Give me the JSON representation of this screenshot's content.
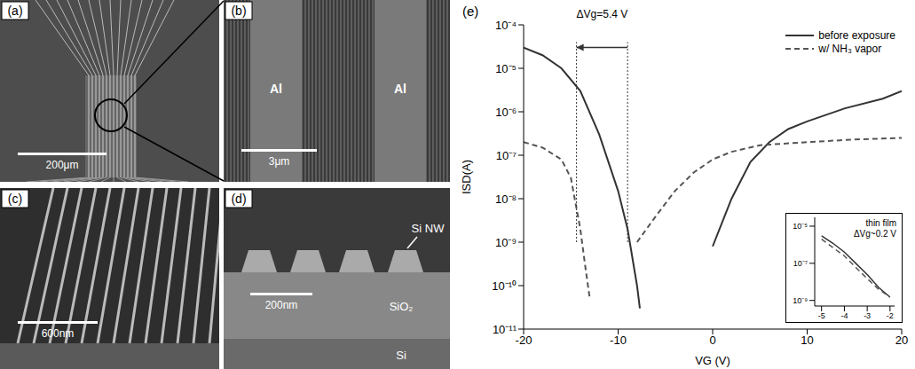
{
  "panels": [
    {
      "label": "(a)",
      "scale_bar": "200μm"
    },
    {
      "label": "(b)",
      "labels": [
        "Al",
        "Al"
      ],
      "scale_bar": "3μm"
    },
    {
      "label": "(c)",
      "scale_bar": "600nm"
    },
    {
      "label": "(d)",
      "labels": [
        "Si NW",
        "SiO₂",
        "Si"
      ],
      "scale_bar": "200nm"
    }
  ],
  "chart_data": [
    {
      "type": "line",
      "label": "(e)",
      "x_label": "VG (V)",
      "y_label": "ISD(A)",
      "log": "y",
      "legend": "upper right",
      "xlim": [
        -20,
        20
      ],
      "xticks": [
        -20,
        -10,
        0,
        10,
        20
      ],
      "ylim": [
        1e-11,
        0.0001
      ],
      "yticks": [
        {
          "value": 1e-11,
          "label": "10⁻¹¹"
        },
        {
          "value": 1e-10,
          "label": "10⁻¹⁰"
        },
        {
          "value": 1e-09,
          "label": "10⁻⁹"
        },
        {
          "value": 1e-08,
          "label": "10⁻⁸"
        },
        {
          "value": 1e-07,
          "label": "10⁻⁷"
        },
        {
          "value": 1e-06,
          "label": "10⁻⁶"
        },
        {
          "value": 1e-05,
          "label": "10⁻⁵"
        },
        {
          "value": 0.0001,
          "label": "10⁻⁴"
        }
      ],
      "series": [
        {
          "name": "before exposure",
          "color": "#333333",
          "line_style": "solid",
          "marker": "none",
          "x": [
            -20,
            -18,
            -16,
            -14,
            -12,
            -10,
            -9,
            -8,
            -7.7,
            -4,
            0,
            2,
            4,
            6,
            8,
            10,
            14,
            18,
            20
          ],
          "values": [
            3e-05,
            2e-05,
            1e-05,
            3e-06,
            3e-07,
            1.5e-08,
            2e-09,
            1e-10,
            3e-11,
            null,
            8e-10,
            1e-08,
            7e-08,
            2e-07,
            4e-07,
            6e-07,
            1.2e-06,
            2e-06,
            3e-06
          ]
        },
        {
          "name": "w/ NH₃ vapor",
          "color": "#555555",
          "line_style": "dashed",
          "marker": "none",
          "x": [
            -20,
            -18,
            -16,
            -15,
            -14,
            -13.5,
            -13,
            -10,
            -8,
            -6,
            -4,
            -2,
            0,
            2,
            5,
            10,
            15,
            20
          ],
          "values": [
            2e-07,
            1.5e-07,
            8e-08,
            3e-08,
            2e-09,
            3e-10,
            5e-11,
            null,
            1e-09,
            4e-09,
            1.5e-08,
            4e-08,
            8e-08,
            1.2e-07,
            1.7e-07,
            2e-07,
            2.3e-07,
            2.5e-07
          ]
        }
      ],
      "annotations": [
        {
          "text": "ΔVg=5.4 V",
          "from": -9,
          "to": -14.4,
          "y": 3e-05,
          "y_range": [
            1e-09,
            4e-05
          ]
        }
      ]
    },
    {
      "type": "line",
      "title": "thin film",
      "annotation": "ΔVg~0.2 V",
      "log": "y",
      "xlim": [
        -5.3,
        -1.8
      ],
      "xticks": [
        -5,
        -4,
        -3,
        -2
      ],
      "ylim": [
        5e-10,
        3e-05
      ],
      "yticks": [
        {
          "value": 1e-09,
          "label": "10⁻⁹"
        },
        {
          "value": 1e-07,
          "label": "10⁻⁷"
        },
        {
          "value": 1e-05,
          "label": "10⁻⁵"
        }
      ],
      "series": [
        {
          "color": "#333333",
          "line_style": "solid",
          "x": [
            -5,
            -4.5,
            -4,
            -3.5,
            -3,
            -2.5,
            -2
          ],
          "values": [
            3e-06,
            1.2e-06,
            4e-07,
            1e-07,
            2.5e-08,
            5e-09,
            1.5e-09
          ]
        },
        {
          "color": "#555555",
          "line_style": "dashed",
          "x": [
            -5,
            -4.5,
            -4,
            -3.5,
            -3,
            -2.5,
            -2
          ],
          "values": [
            2e-06,
            7e-07,
            2.5e-07,
            6e-08,
            1.5e-08,
            4e-09,
            1.5e-09
          ]
        }
      ]
    }
  ]
}
